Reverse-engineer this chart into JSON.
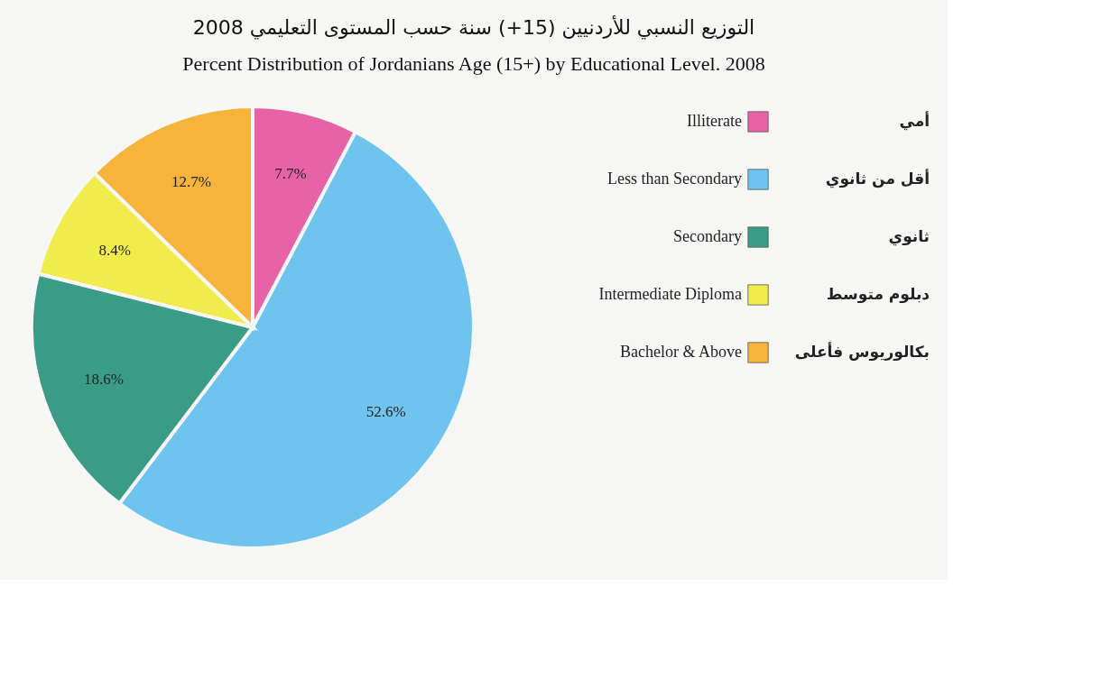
{
  "chart_data": {
    "type": "pie",
    "title": "التوزيع النسبي للأردنيين (15+) سنة حسب المستوى التعليمي 2008",
    "subtitle": "Percent Distribution of Jordanians Age (15+) by Educational Level. 2008",
    "categories": [
      "Illiterate",
      "Less than Secondary",
      "Secondary",
      "Intermediate Diploma",
      "Bachelor & Above"
    ],
    "values": [
      7.7,
      52.6,
      18.6,
      8.4,
      12.7
    ],
    "colors": [
      "#e862a8",
      "#6ec4ee",
      "#3a9c86",
      "#f0ec4c",
      "#f6b43c"
    ],
    "value_labels": [
      "7.7%",
      "52.6%",
      "18.6%",
      "8.4%",
      "12.7%"
    ],
    "annotations": [
      "أمي",
      "أقل من ثانوي",
      "ثانوي",
      "دبلوم متوسط",
      "بكالوريوس فأعلى"
    ],
    "legend": "right"
  }
}
